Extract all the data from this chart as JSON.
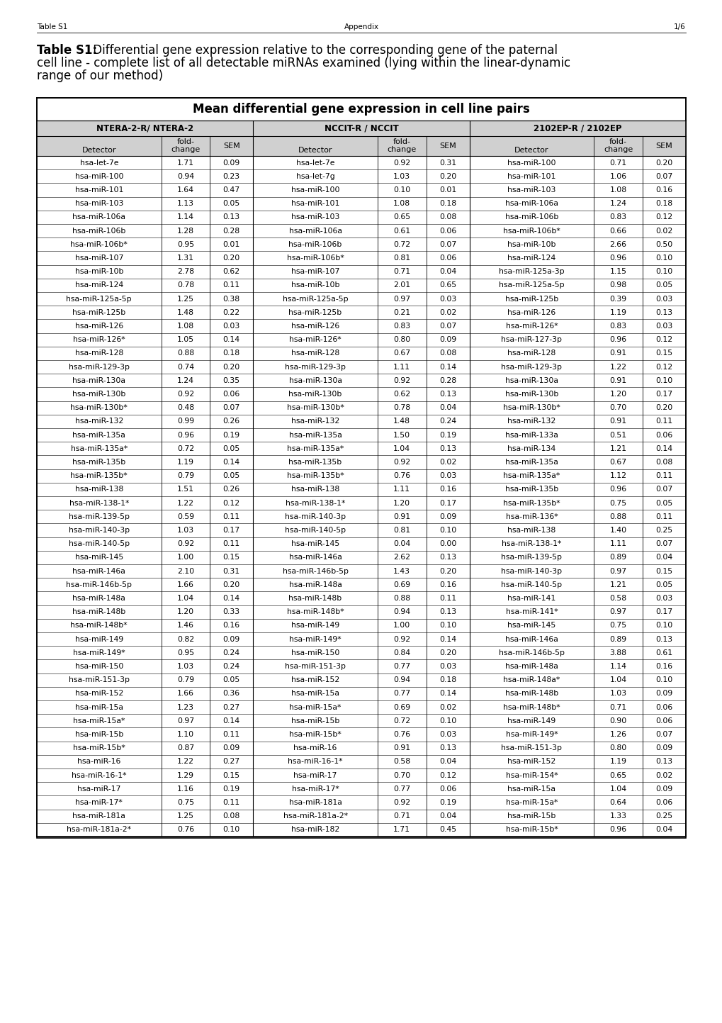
{
  "page_header_left": "Table S1",
  "page_header_center": "Appendix",
  "page_header_right": "1/6",
  "title_bold": "Table S1:",
  "title_rest": " Differential gene expression relative to the corresponding gene of the paternal\ncell line - complete list of all detectable miRNAs examined (lying within the linear-dynamic\nrange of our method)",
  "box_title": "Mean differential gene expression in cell line pairs",
  "col_groups": [
    "NTERA-2-R/ NTERA-2",
    "NCCIT-R / NCCIT",
    "2102EP-R / 2102EP"
  ],
  "rows": [
    [
      "hsa-let-7e",
      "1.71",
      "0.09",
      "hsa-let-7e",
      "0.92",
      "0.31",
      "hsa-miR-100",
      "0.71",
      "0.20"
    ],
    [
      "hsa-miR-100",
      "0.94",
      "0.23",
      "hsa-let-7g",
      "1.03",
      "0.20",
      "hsa-miR-101",
      "1.06",
      "0.07"
    ],
    [
      "hsa-miR-101",
      "1.64",
      "0.47",
      "hsa-miR-100",
      "0.10",
      "0.01",
      "hsa-miR-103",
      "1.08",
      "0.16"
    ],
    [
      "hsa-miR-103",
      "1.13",
      "0.05",
      "hsa-miR-101",
      "1.08",
      "0.18",
      "hsa-miR-106a",
      "1.24",
      "0.18"
    ],
    [
      "hsa-miR-106a",
      "1.14",
      "0.13",
      "hsa-miR-103",
      "0.65",
      "0.08",
      "hsa-miR-106b",
      "0.83",
      "0.12"
    ],
    [
      "hsa-miR-106b",
      "1.28",
      "0.28",
      "hsa-miR-106a",
      "0.61",
      "0.06",
      "hsa-miR-106b*",
      "0.66",
      "0.02"
    ],
    [
      "hsa-miR-106b*",
      "0.95",
      "0.01",
      "hsa-miR-106b",
      "0.72",
      "0.07",
      "hsa-miR-10b",
      "2.66",
      "0.50"
    ],
    [
      "hsa-miR-107",
      "1.31",
      "0.20",
      "hsa-miR-106b*",
      "0.81",
      "0.06",
      "hsa-miR-124",
      "0.96",
      "0.10"
    ],
    [
      "hsa-miR-10b",
      "2.78",
      "0.62",
      "hsa-miR-107",
      "0.71",
      "0.04",
      "hsa-miR-125a-3p",
      "1.15",
      "0.10"
    ],
    [
      "hsa-miR-124",
      "0.78",
      "0.11",
      "hsa-miR-10b",
      "2.01",
      "0.65",
      "hsa-miR-125a-5p",
      "0.98",
      "0.05"
    ],
    [
      "hsa-miR-125a-5p",
      "1.25",
      "0.38",
      "hsa-miR-125a-5p",
      "0.97",
      "0.03",
      "hsa-miR-125b",
      "0.39",
      "0.03"
    ],
    [
      "hsa-miR-125b",
      "1.48",
      "0.22",
      "hsa-miR-125b",
      "0.21",
      "0.02",
      "hsa-miR-126",
      "1.19",
      "0.13"
    ],
    [
      "hsa-miR-126",
      "1.08",
      "0.03",
      "hsa-miR-126",
      "0.83",
      "0.07",
      "hsa-miR-126*",
      "0.83",
      "0.03"
    ],
    [
      "hsa-miR-126*",
      "1.05",
      "0.14",
      "hsa-miR-126*",
      "0.80",
      "0.09",
      "hsa-miR-127-3p",
      "0.96",
      "0.12"
    ],
    [
      "hsa-miR-128",
      "0.88",
      "0.18",
      "hsa-miR-128",
      "0.67",
      "0.08",
      "hsa-miR-128",
      "0.91",
      "0.15"
    ],
    [
      "hsa-miR-129-3p",
      "0.74",
      "0.20",
      "hsa-miR-129-3p",
      "1.11",
      "0.14",
      "hsa-miR-129-3p",
      "1.22",
      "0.12"
    ],
    [
      "hsa-miR-130a",
      "1.24",
      "0.35",
      "hsa-miR-130a",
      "0.92",
      "0.28",
      "hsa-miR-130a",
      "0.91",
      "0.10"
    ],
    [
      "hsa-miR-130b",
      "0.92",
      "0.06",
      "hsa-miR-130b",
      "0.62",
      "0.13",
      "hsa-miR-130b",
      "1.20",
      "0.17"
    ],
    [
      "hsa-miR-130b*",
      "0.48",
      "0.07",
      "hsa-miR-130b*",
      "0.78",
      "0.04",
      "hsa-miR-130b*",
      "0.70",
      "0.20"
    ],
    [
      "hsa-miR-132",
      "0.99",
      "0.26",
      "hsa-miR-132",
      "1.48",
      "0.24",
      "hsa-miR-132",
      "0.91",
      "0.11"
    ],
    [
      "hsa-miR-135a",
      "0.96",
      "0.19",
      "hsa-miR-135a",
      "1.50",
      "0.19",
      "hsa-miR-133a",
      "0.51",
      "0.06"
    ],
    [
      "hsa-miR-135a*",
      "0.72",
      "0.05",
      "hsa-miR-135a*",
      "1.04",
      "0.13",
      "hsa-miR-134",
      "1.21",
      "0.14"
    ],
    [
      "hsa-miR-135b",
      "1.19",
      "0.14",
      "hsa-miR-135b",
      "0.92",
      "0.02",
      "hsa-miR-135a",
      "0.67",
      "0.08"
    ],
    [
      "hsa-miR-135b*",
      "0.79",
      "0.05",
      "hsa-miR-135b*",
      "0.76",
      "0.03",
      "hsa-miR-135a*",
      "1.12",
      "0.11"
    ],
    [
      "hsa-miR-138",
      "1.51",
      "0.26",
      "hsa-miR-138",
      "1.11",
      "0.16",
      "hsa-miR-135b",
      "0.96",
      "0.07"
    ],
    [
      "hsa-miR-138-1*",
      "1.22",
      "0.12",
      "hsa-miR-138-1*",
      "1.20",
      "0.17",
      "hsa-miR-135b*",
      "0.75",
      "0.05"
    ],
    [
      "hsa-miR-139-5p",
      "0.59",
      "0.11",
      "hsa-miR-140-3p",
      "0.91",
      "0.09",
      "hsa-miR-136*",
      "0.88",
      "0.11"
    ],
    [
      "hsa-miR-140-3p",
      "1.03",
      "0.17",
      "hsa-miR-140-5p",
      "0.81",
      "0.10",
      "hsa-miR-138",
      "1.40",
      "0.25"
    ],
    [
      "hsa-miR-140-5p",
      "0.92",
      "0.11",
      "hsa-miR-145",
      "0.04",
      "0.00",
      "hsa-miR-138-1*",
      "1.11",
      "0.07"
    ],
    [
      "hsa-miR-145",
      "1.00",
      "0.15",
      "hsa-miR-146a",
      "2.62",
      "0.13",
      "hsa-miR-139-5p",
      "0.89",
      "0.04"
    ],
    [
      "hsa-miR-146a",
      "2.10",
      "0.31",
      "hsa-miR-146b-5p",
      "1.43",
      "0.20",
      "hsa-miR-140-3p",
      "0.97",
      "0.15"
    ],
    [
      "hsa-miR-146b-5p",
      "1.66",
      "0.20",
      "hsa-miR-148a",
      "0.69",
      "0.16",
      "hsa-miR-140-5p",
      "1.21",
      "0.05"
    ],
    [
      "hsa-miR-148a",
      "1.04",
      "0.14",
      "hsa-miR-148b",
      "0.88",
      "0.11",
      "hsa-miR-141",
      "0.58",
      "0.03"
    ],
    [
      "hsa-miR-148b",
      "1.20",
      "0.33",
      "hsa-miR-148b*",
      "0.94",
      "0.13",
      "hsa-miR-141*",
      "0.97",
      "0.17"
    ],
    [
      "hsa-miR-148b*",
      "1.46",
      "0.16",
      "hsa-miR-149",
      "1.00",
      "0.10",
      "hsa-miR-145",
      "0.75",
      "0.10"
    ],
    [
      "hsa-miR-149",
      "0.82",
      "0.09",
      "hsa-miR-149*",
      "0.92",
      "0.14",
      "hsa-miR-146a",
      "0.89",
      "0.13"
    ],
    [
      "hsa-miR-149*",
      "0.95",
      "0.24",
      "hsa-miR-150",
      "0.84",
      "0.20",
      "hsa-miR-146b-5p",
      "3.88",
      "0.61"
    ],
    [
      "hsa-miR-150",
      "1.03",
      "0.24",
      "hsa-miR-151-3p",
      "0.77",
      "0.03",
      "hsa-miR-148a",
      "1.14",
      "0.16"
    ],
    [
      "hsa-miR-151-3p",
      "0.79",
      "0.05",
      "hsa-miR-152",
      "0.94",
      "0.18",
      "hsa-miR-148a*",
      "1.04",
      "0.10"
    ],
    [
      "hsa-miR-152",
      "1.66",
      "0.36",
      "hsa-miR-15a",
      "0.77",
      "0.14",
      "hsa-miR-148b",
      "1.03",
      "0.09"
    ],
    [
      "hsa-miR-15a",
      "1.23",
      "0.27",
      "hsa-miR-15a*",
      "0.69",
      "0.02",
      "hsa-miR-148b*",
      "0.71",
      "0.06"
    ],
    [
      "hsa-miR-15a*",
      "0.97",
      "0.14",
      "hsa-miR-15b",
      "0.72",
      "0.10",
      "hsa-miR-149",
      "0.90",
      "0.06"
    ],
    [
      "hsa-miR-15b",
      "1.10",
      "0.11",
      "hsa-miR-15b*",
      "0.76",
      "0.03",
      "hsa-miR-149*",
      "1.26",
      "0.07"
    ],
    [
      "hsa-miR-15b*",
      "0.87",
      "0.09",
      "hsa-miR-16",
      "0.91",
      "0.13",
      "hsa-miR-151-3p",
      "0.80",
      "0.09"
    ],
    [
      "hsa-miR-16",
      "1.22",
      "0.27",
      "hsa-miR-16-1*",
      "0.58",
      "0.04",
      "hsa-miR-152",
      "1.19",
      "0.13"
    ],
    [
      "hsa-miR-16-1*",
      "1.29",
      "0.15",
      "hsa-miR-17",
      "0.70",
      "0.12",
      "hsa-miR-154*",
      "0.65",
      "0.02"
    ],
    [
      "hsa-miR-17",
      "1.16",
      "0.19",
      "hsa-miR-17*",
      "0.77",
      "0.06",
      "hsa-miR-15a",
      "1.04",
      "0.09"
    ],
    [
      "hsa-miR-17*",
      "0.75",
      "0.11",
      "hsa-miR-181a",
      "0.92",
      "0.19",
      "hsa-miR-15a*",
      "0.64",
      "0.06"
    ],
    [
      "hsa-miR-181a",
      "1.25",
      "0.08",
      "hsa-miR-181a-2*",
      "0.71",
      "0.04",
      "hsa-miR-15b",
      "1.33",
      "0.25"
    ],
    [
      "hsa-miR-181a-2*",
      "0.76",
      "0.10",
      "hsa-miR-182",
      "1.71",
      "0.45",
      "hsa-miR-15b*",
      "0.96",
      "0.04"
    ]
  ]
}
